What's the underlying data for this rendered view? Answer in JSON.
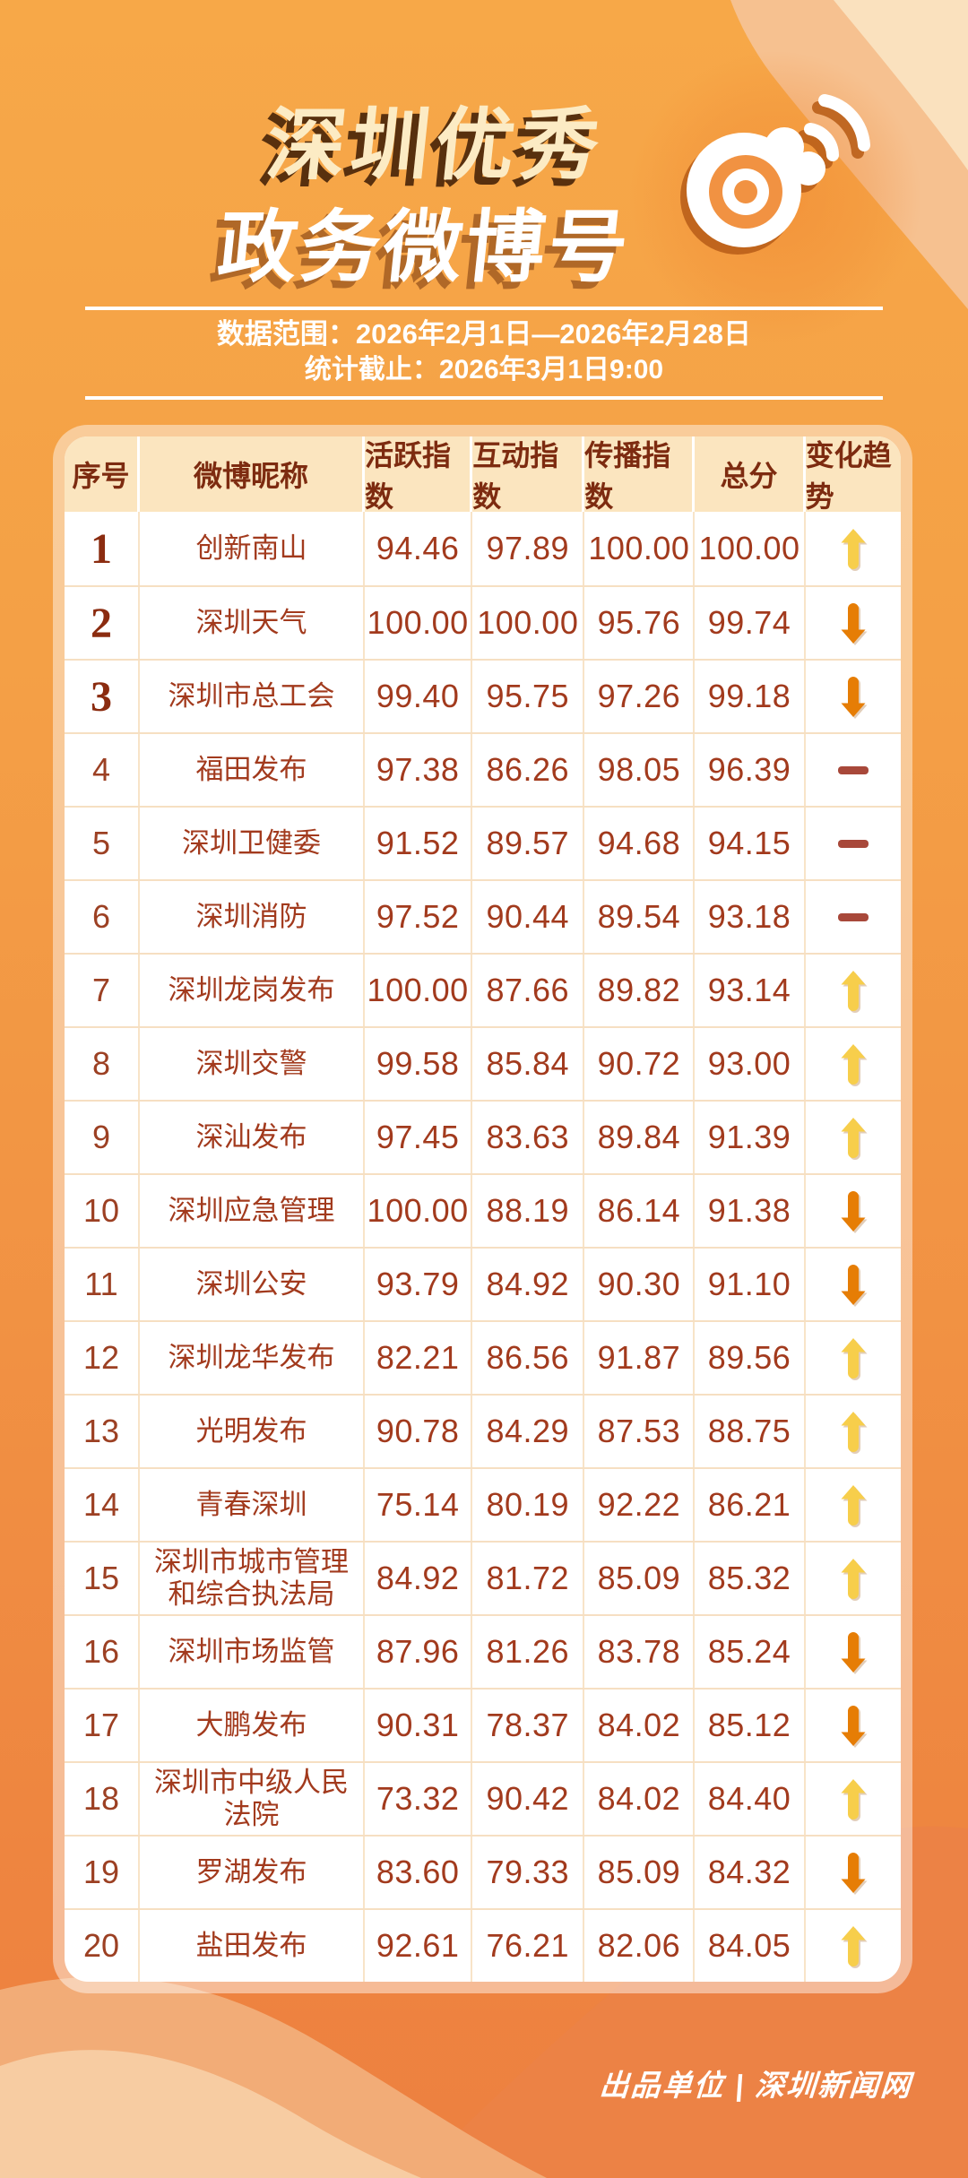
{
  "poster": {
    "title_line1": "深圳优秀",
    "title_line2": "政务微博号",
    "meta_range": "数据范围：2026年2月1日—2026年2月28日",
    "meta_cutoff": "统计截止：2026年3月1日9:00",
    "footer_credit": "出品单位 | 深圳新闻网"
  },
  "icons": {
    "logo": "weibo-eye-logo",
    "up": "yellow-up-arrow",
    "down": "orange-down-arrow",
    "flat": "maroon-dash"
  },
  "colors": {
    "bg_top": "#F7A848",
    "bg_bottom": "#ED8040",
    "wave_lightest": "#F7CCA2",
    "wave_mid": "#F2AC77",
    "wave_deep": "#EC8245",
    "card_bg": "#FFFFFF",
    "header_bg": "#FBE5BF",
    "header_text": "#7D2B10",
    "body_text": "#A23A1D",
    "rank_top3_text": "#8B2C10",
    "title_line1_fill": "#FCEBC4",
    "title_line2_fill": "#FFFFFF",
    "up_arrow": "#F7CE4B",
    "down_arrow": "#E67D05",
    "flat_dash": "#A8483A"
  },
  "table": {
    "headers": [
      "序号",
      "微博昵称",
      "活跃指数",
      "互动指数",
      "传播指数",
      "总分",
      "变化趋势"
    ],
    "rows": [
      {
        "rank": "1",
        "name": "创新南山",
        "active": "94.46",
        "interact": "97.89",
        "spread": "100.00",
        "total": "100.00",
        "trend": "up"
      },
      {
        "rank": "2",
        "name": "深圳天气",
        "active": "100.00",
        "interact": "100.00",
        "spread": "95.76",
        "total": "99.74",
        "trend": "down"
      },
      {
        "rank": "3",
        "name": "深圳市总工会",
        "active": "99.40",
        "interact": "95.75",
        "spread": "97.26",
        "total": "99.18",
        "trend": "down"
      },
      {
        "rank": "4",
        "name": "福田发布",
        "active": "97.38",
        "interact": "86.26",
        "spread": "98.05",
        "total": "96.39",
        "trend": "flat"
      },
      {
        "rank": "5",
        "name": "深圳卫健委",
        "active": "91.52",
        "interact": "89.57",
        "spread": "94.68",
        "total": "94.15",
        "trend": "flat"
      },
      {
        "rank": "6",
        "name": "深圳消防",
        "active": "97.52",
        "interact": "90.44",
        "spread": "89.54",
        "total": "93.18",
        "trend": "flat"
      },
      {
        "rank": "7",
        "name": "深圳龙岗发布",
        "active": "100.00",
        "interact": "87.66",
        "spread": "89.82",
        "total": "93.14",
        "trend": "up"
      },
      {
        "rank": "8",
        "name": "深圳交警",
        "active": "99.58",
        "interact": "85.84",
        "spread": "90.72",
        "total": "93.00",
        "trend": "up"
      },
      {
        "rank": "9",
        "name": "深汕发布",
        "active": "97.45",
        "interact": "83.63",
        "spread": "89.84",
        "total": "91.39",
        "trend": "up"
      },
      {
        "rank": "10",
        "name": "深圳应急管理",
        "active": "100.00",
        "interact": "88.19",
        "spread": "86.14",
        "total": "91.38",
        "trend": "down"
      },
      {
        "rank": "11",
        "name": "深圳公安",
        "active": "93.79",
        "interact": "84.92",
        "spread": "90.30",
        "total": "91.10",
        "trend": "down"
      },
      {
        "rank": "12",
        "name": "深圳龙华发布",
        "active": "82.21",
        "interact": "86.56",
        "spread": "91.87",
        "total": "89.56",
        "trend": "up"
      },
      {
        "rank": "13",
        "name": "光明发布",
        "active": "90.78",
        "interact": "84.29",
        "spread": "87.53",
        "total": "88.75",
        "trend": "up"
      },
      {
        "rank": "14",
        "name": "青春深圳",
        "active": "75.14",
        "interact": "80.19",
        "spread": "92.22",
        "total": "86.21",
        "trend": "up"
      },
      {
        "rank": "15",
        "name": "深圳市城市管理和综合执法局",
        "active": "84.92",
        "interact": "81.72",
        "spread": "85.09",
        "total": "85.32",
        "trend": "up"
      },
      {
        "rank": "16",
        "name": "深圳市场监管",
        "active": "87.96",
        "interact": "81.26",
        "spread": "83.78",
        "total": "85.24",
        "trend": "down"
      },
      {
        "rank": "17",
        "name": "大鹏发布",
        "active": "90.31",
        "interact": "78.37",
        "spread": "84.02",
        "total": "85.12",
        "trend": "down"
      },
      {
        "rank": "18",
        "name": "深圳市中级人民法院",
        "active": "73.32",
        "interact": "90.42",
        "spread": "84.02",
        "total": "84.40",
        "trend": "up"
      },
      {
        "rank": "19",
        "name": "罗湖发布",
        "active": "83.60",
        "interact": "79.33",
        "spread": "85.09",
        "total": "84.32",
        "trend": "down"
      },
      {
        "rank": "20",
        "name": "盐田发布",
        "active": "92.61",
        "interact": "76.21",
        "spread": "82.06",
        "total": "84.05",
        "trend": "up"
      }
    ]
  },
  "chart_data": {
    "type": "table",
    "title": "深圳优秀政务微博号",
    "subtitle": "数据范围：2026年2月1日—2026年2月28日；统计截止：2026年3月1日9:00",
    "columns": [
      "序号",
      "微博昵称",
      "活跃指数",
      "互动指数",
      "传播指数",
      "总分",
      "变化趋势"
    ],
    "rows": [
      [
        1,
        "创新南山",
        94.46,
        97.89,
        100.0,
        100.0,
        "up"
      ],
      [
        2,
        "深圳天气",
        100.0,
        100.0,
        95.76,
        99.74,
        "down"
      ],
      [
        3,
        "深圳市总工会",
        99.4,
        95.75,
        97.26,
        99.18,
        "down"
      ],
      [
        4,
        "福田发布",
        97.38,
        86.26,
        98.05,
        96.39,
        "flat"
      ],
      [
        5,
        "深圳卫健委",
        91.52,
        89.57,
        94.68,
        94.15,
        "flat"
      ],
      [
        6,
        "深圳消防",
        97.52,
        90.44,
        89.54,
        93.18,
        "flat"
      ],
      [
        7,
        "深圳龙岗发布",
        100.0,
        87.66,
        89.82,
        93.14,
        "up"
      ],
      [
        8,
        "深圳交警",
        99.58,
        85.84,
        90.72,
        93.0,
        "up"
      ],
      [
        9,
        "深汕发布",
        97.45,
        83.63,
        89.84,
        91.39,
        "up"
      ],
      [
        10,
        "深圳应急管理",
        100.0,
        88.19,
        86.14,
        91.38,
        "down"
      ],
      [
        11,
        "深圳公安",
        93.79,
        84.92,
        90.3,
        91.1,
        "down"
      ],
      [
        12,
        "深圳龙华发布",
        82.21,
        86.56,
        91.87,
        89.56,
        "up"
      ],
      [
        13,
        "光明发布",
        90.78,
        84.29,
        87.53,
        88.75,
        "up"
      ],
      [
        14,
        "青春深圳",
        75.14,
        80.19,
        92.22,
        86.21,
        "up"
      ],
      [
        15,
        "深圳市城市管理和综合执法局",
        84.92,
        81.72,
        85.09,
        85.32,
        "up"
      ],
      [
        16,
        "深圳市场监管",
        87.96,
        81.26,
        83.78,
        85.24,
        "down"
      ],
      [
        17,
        "大鹏发布",
        90.31,
        78.37,
        84.02,
        85.12,
        "down"
      ],
      [
        18,
        "深圳市中级人民法院",
        73.32,
        90.42,
        84.02,
        84.4,
        "up"
      ],
      [
        19,
        "罗湖发布",
        83.6,
        79.33,
        85.09,
        84.32,
        "down"
      ],
      [
        20,
        "盐田发布",
        92.61,
        76.21,
        82.06,
        84.05,
        "up"
      ]
    ]
  }
}
